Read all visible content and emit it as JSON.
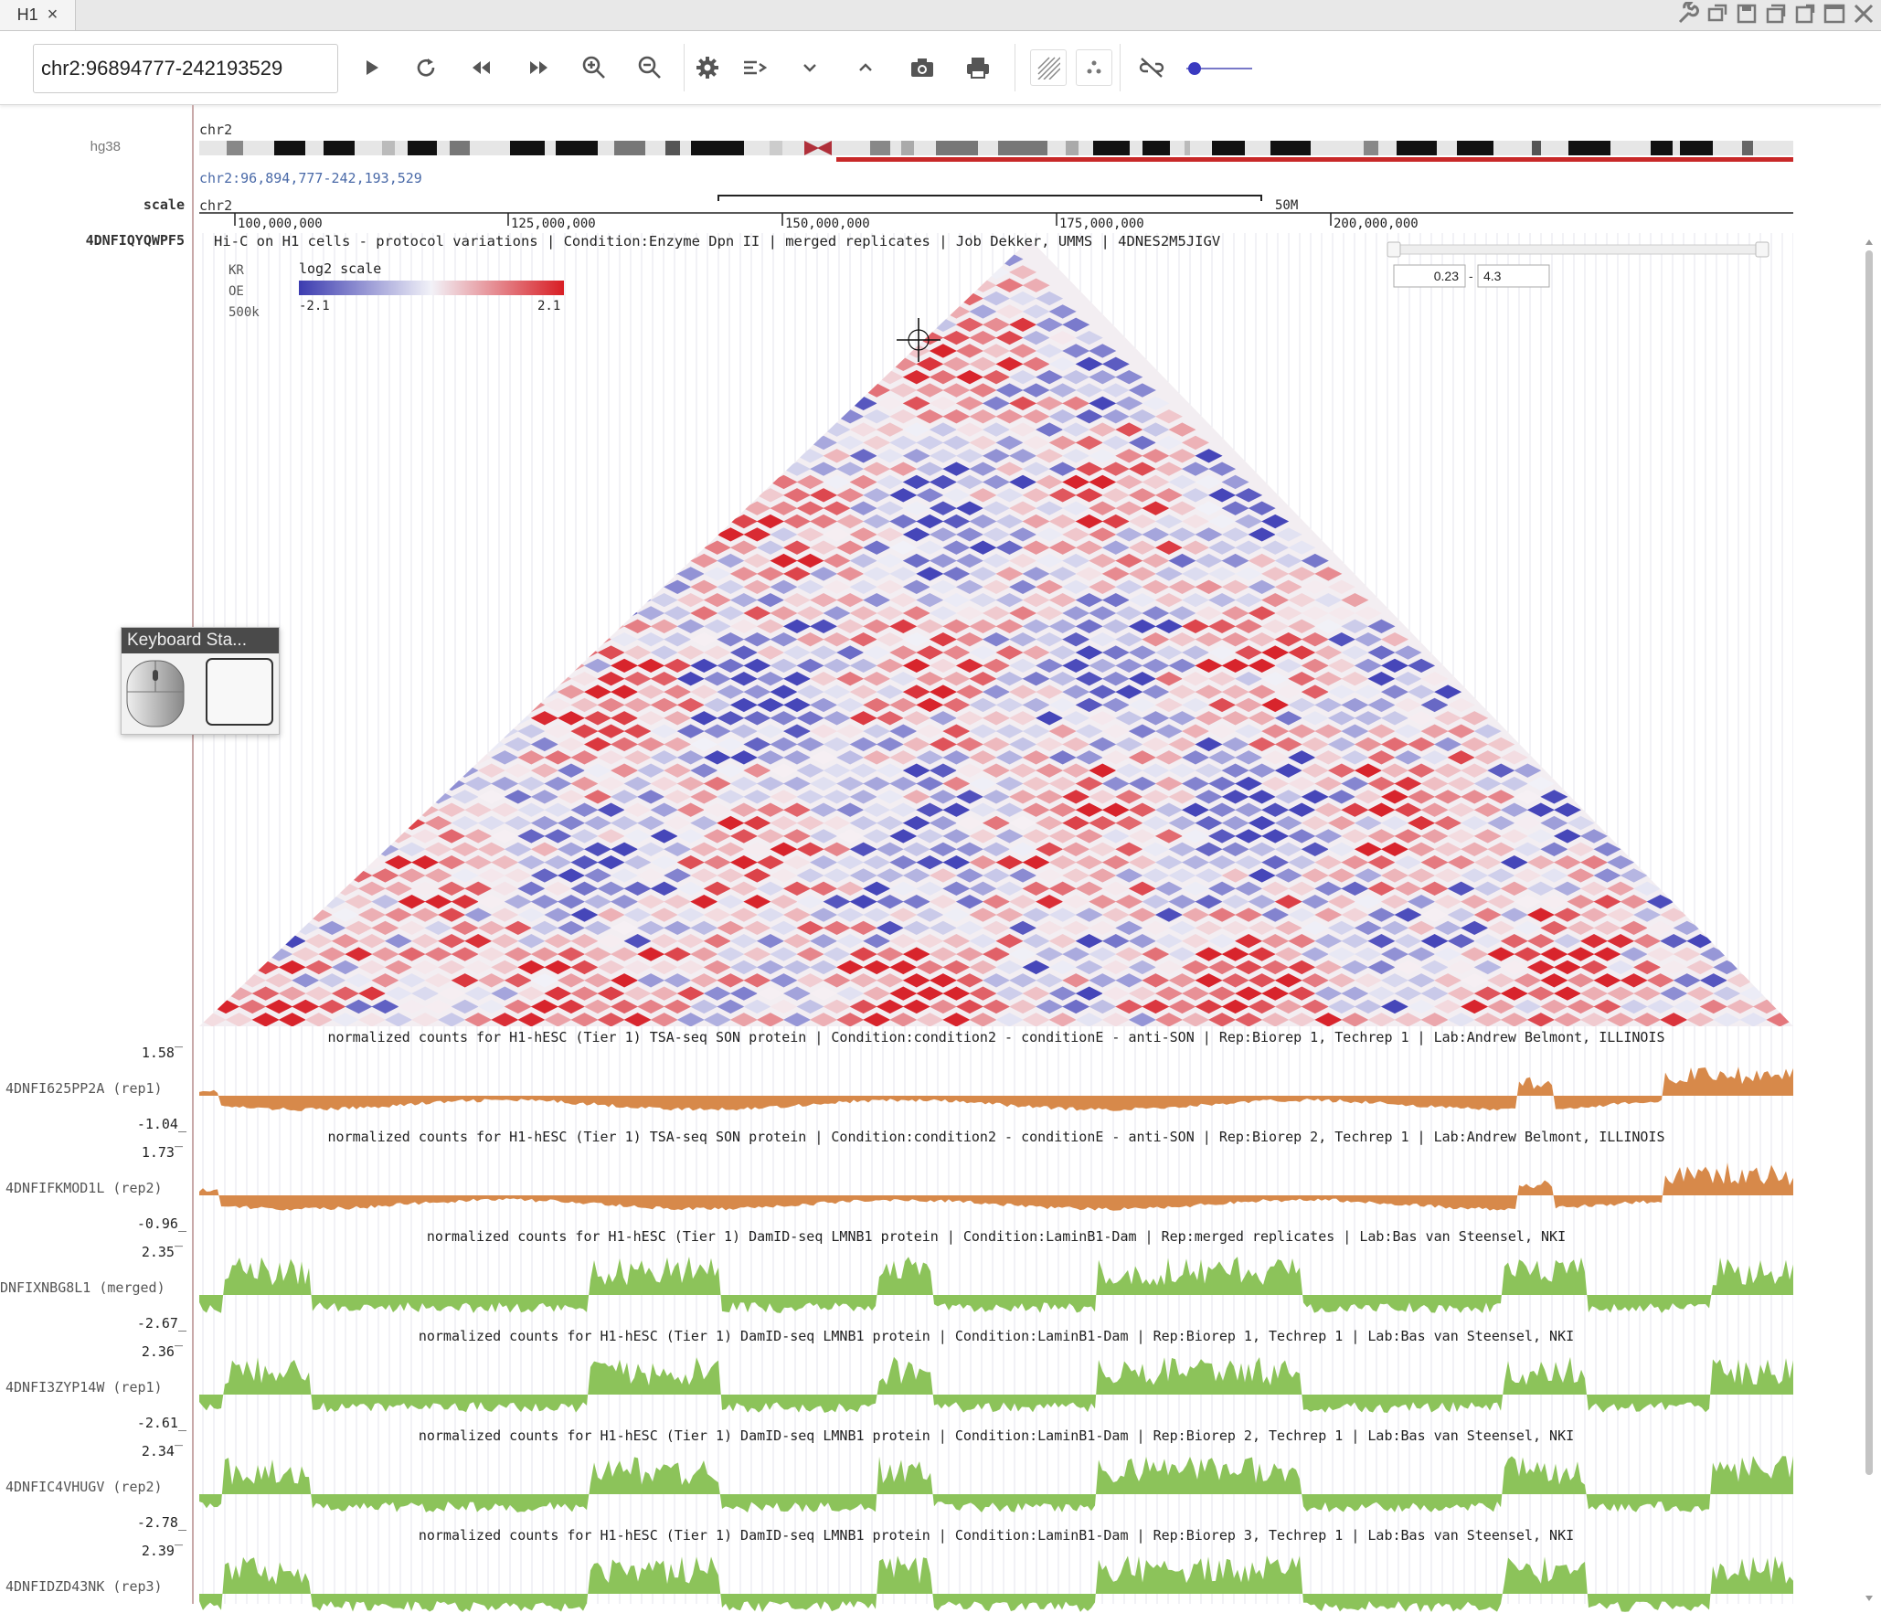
{
  "tab": {
    "label": "H1",
    "close": "×"
  },
  "toolbar": {
    "locus_value": "chr2:96894777-242193529"
  },
  "ideogram": {
    "genome": "hg38",
    "chrom": "chr2",
    "range_text": "chr2:96,894,777-242,193,529"
  },
  "scale": {
    "label": "scale",
    "chrom": "chr2",
    "scalebar_text": "50M",
    "ticks": [
      "100,000,000",
      "125,000,000",
      "150,000,000",
      "175,000,000",
      "200,000,000"
    ]
  },
  "hic": {
    "track_label": "4DNFIQYQWPF5",
    "title": "Hi-C on H1 cells - protocol variations | Condition:Enzyme Dpn II | merged replicates | Job Dekker, UMMS | 4DNES2M5JIGV",
    "norm": "KR",
    "mode": "OE",
    "resolution": "500k",
    "scale_label": "log2 scale",
    "scale_min": "-2.1",
    "scale_max": "2.1",
    "range_min": "0.23",
    "range_dash": "-",
    "range_max": "4.3",
    "colors": {
      "neg": "#4a4ab4",
      "pos": "#d8202a"
    }
  },
  "tracks": [
    {
      "label": "4DNFI625PP2A (rep1)",
      "max": "1.58",
      "min": "-1.04",
      "color": "#d7894a",
      "kind": "son",
      "title": "normalized counts for H1-hESC (Tier 1) TSA-seq SON protein | Condition:condition2 - conditionE - anti-SON | Rep:Biorep 1, Techrep 1 | Lab:Andrew Belmont, ILLINOIS"
    },
    {
      "label": "4DNFIFKMOD1L (rep2)",
      "max": "1.73",
      "min": "-0.96",
      "color": "#d7894a",
      "kind": "son",
      "title": "normalized counts for H1-hESC (Tier 1) TSA-seq SON protein | Condition:condition2 - conditionE - anti-SON | Rep:Biorep 2, Techrep 1 | Lab:Andrew Belmont, ILLINOIS"
    },
    {
      "label": "DNFIXNBG8L1 (merged)",
      "max": "2.35",
      "min": "-2.67",
      "color": "#8cc35a",
      "kind": "dam",
      "title": "normalized counts for H1-hESC (Tier 1) DamID-seq LMNB1 protein | Condition:LaminB1-Dam | Rep:merged replicates | Lab:Bas van Steensel, NKI"
    },
    {
      "label": "4DNFI3ZYP14W (rep1)",
      "max": "2.36",
      "min": "-2.61",
      "color": "#8cc35a",
      "kind": "dam",
      "title": "normalized counts for H1-hESC (Tier 1) DamID-seq LMNB1 protein | Condition:LaminB1-Dam | Rep:Biorep 1, Techrep 1 | Lab:Bas van Steensel, NKI"
    },
    {
      "label": "4DNFIC4VHUGV (rep2)",
      "max": "2.34",
      "min": "-2.78",
      "color": "#8cc35a",
      "kind": "dam",
      "title": "normalized counts for H1-hESC (Tier 1) DamID-seq LMNB1 protein | Condition:LaminB1-Dam | Rep:Biorep 2, Techrep 1 | Lab:Bas van Steensel, NKI"
    },
    {
      "label": "4DNFIDZD43NK (rep3)",
      "max": "2.39",
      "min": "",
      "color": "#8cc35a",
      "kind": "dam",
      "title": "normalized counts for H1-hESC (Tier 1) DamID-seq LMNB1 protein | Condition:LaminB1-Dam | Rep:Biorep 3, Techrep 1 | Lab:Bas van Steensel, NKI"
    }
  ],
  "keyboard_panel": {
    "title": "Keyboard Sta..."
  },
  "icons": [
    "play-icon",
    "refresh-icon",
    "rewind-icon",
    "fast-forward-icon",
    "zoom-in-icon",
    "zoom-out-icon",
    "gear-icon",
    "list-icon",
    "chevron-down-icon",
    "chevron-up-icon",
    "camera-icon",
    "print-icon",
    "hatch-icon",
    "dots-icon",
    "unlink-icon",
    "wrench-icon",
    "restore-icon",
    "save-icon",
    "copy-icon",
    "minimize-icon",
    "maximize-icon",
    "close-icon"
  ]
}
